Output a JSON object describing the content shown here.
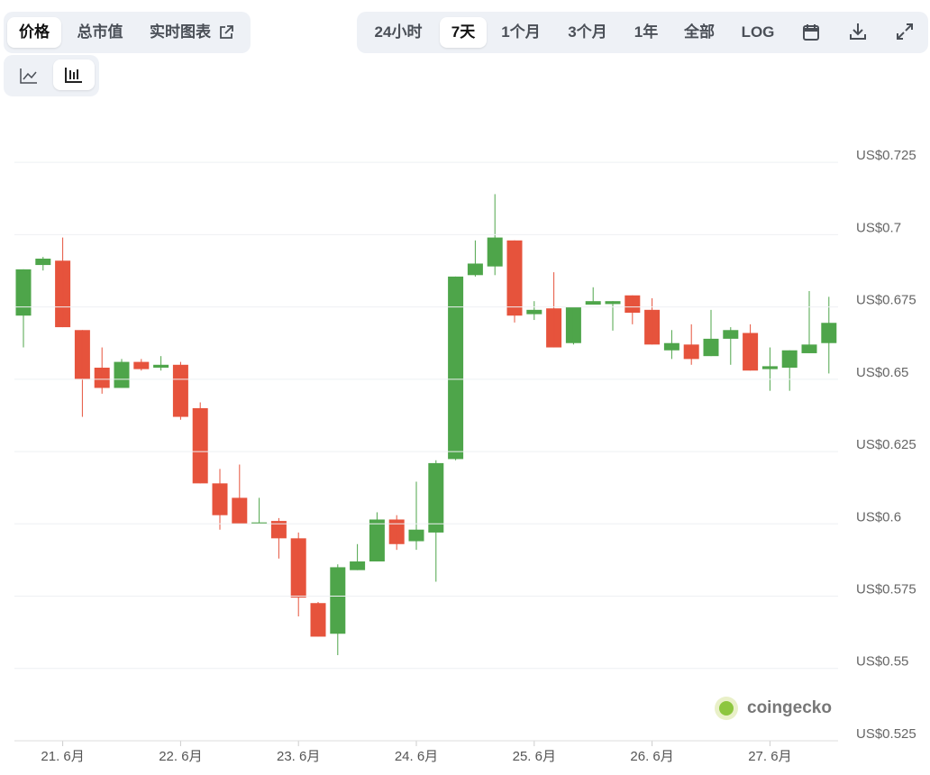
{
  "ui": {
    "tabs": [
      "价格",
      "总市值",
      "实时图表"
    ],
    "ranges": [
      "24小时",
      "7天",
      "1个月",
      "3个月",
      "1年",
      "全部",
      "LOG"
    ],
    "watermark": "coingecko"
  },
  "chart_data": {
    "type": "candlestick",
    "categories": [
      null,
      null,
      "21. 6月",
      null,
      null,
      null,
      null,
      null,
      "22. 6月",
      null,
      null,
      null,
      null,
      null,
      "23. 6月",
      null,
      null,
      null,
      null,
      null,
      "24. 6月",
      null,
      null,
      null,
      null,
      null,
      "25. 6月",
      null,
      null,
      null,
      null,
      null,
      "26. 6月",
      null,
      null,
      null,
      null,
      null,
      "27. 6月",
      null,
      null,
      null
    ],
    "open": [
      0.672,
      0.6895,
      0.691,
      0.667,
      0.654,
      0.647,
      0.656,
      0.654,
      0.655,
      0.64,
      0.614,
      0.609,
      0.6,
      0.601,
      0.595,
      0.5726,
      0.562,
      0.584,
      0.587,
      0.6015,
      0.594,
      0.597,
      0.6224,
      0.686,
      0.689,
      0.698,
      0.6725,
      0.6745,
      0.6625,
      0.6758,
      0.676,
      0.679,
      0.674,
      0.66,
      0.662,
      0.658,
      0.664,
      0.666,
      0.6535,
      0.654,
      0.659,
      0.6625
    ],
    "high": [
      0.688,
      0.6923,
      0.699,
      0.667,
      0.661,
      0.657,
      0.657,
      0.658,
      0.656,
      0.642,
      0.619,
      0.6205,
      0.609,
      0.602,
      0.597,
      0.573,
      0.586,
      0.593,
      0.604,
      0.603,
      0.6146,
      0.622,
      0.6855,
      0.698,
      0.714,
      0.698,
      0.677,
      0.687,
      0.675,
      0.6818,
      0.677,
      0.679,
      0.678,
      0.667,
      0.669,
      0.674,
      0.668,
      0.669,
      0.661,
      0.66,
      0.6805,
      0.6785
    ],
    "low": [
      0.661,
      0.6876,
      0.668,
      0.637,
      0.645,
      0.647,
      0.653,
      0.653,
      0.636,
      0.614,
      0.598,
      0.6,
      0.6,
      0.588,
      0.568,
      0.561,
      0.5546,
      0.584,
      0.587,
      0.591,
      0.591,
      0.58,
      0.622,
      0.6855,
      0.686,
      0.6696,
      0.6705,
      0.661,
      0.662,
      0.6758,
      0.6668,
      0.669,
      0.662,
      0.657,
      0.655,
      0.658,
      0.655,
      0.653,
      0.646,
      0.646,
      0.659,
      0.652
    ],
    "close": [
      0.688,
      0.6917,
      0.668,
      0.65,
      0.647,
      0.656,
      0.6535,
      0.655,
      0.637,
      0.614,
      0.603,
      0.6,
      0.6005,
      0.595,
      0.5745,
      0.561,
      0.585,
      0.587,
      0.6015,
      0.593,
      0.598,
      0.621,
      0.6855,
      0.69,
      0.699,
      0.672,
      0.674,
      0.661,
      0.675,
      0.677,
      0.677,
      0.673,
      0.662,
      0.6625,
      0.657,
      0.664,
      0.667,
      0.653,
      0.6545,
      0.66,
      0.662,
      0.6695
    ],
    "up_color": "#4ea54a",
    "down_color": "#e6533c",
    "ylim": [
      0.525,
      0.74
    ],
    "yticks": [
      {
        "value": 0.525,
        "label": "US$0.525"
      },
      {
        "value": 0.55,
        "label": "US$0.55"
      },
      {
        "value": 0.575,
        "label": "US$0.575"
      },
      {
        "value": 0.6,
        "label": "US$0.6"
      },
      {
        "value": 0.625,
        "label": "US$0.625"
      },
      {
        "value": 0.65,
        "label": "US$0.65"
      },
      {
        "value": 0.675,
        "label": "US$0.675"
      },
      {
        "value": 0.7,
        "label": "US$0.7"
      },
      {
        "value": 0.725,
        "label": "US$0.725"
      }
    ],
    "grid": true
  }
}
